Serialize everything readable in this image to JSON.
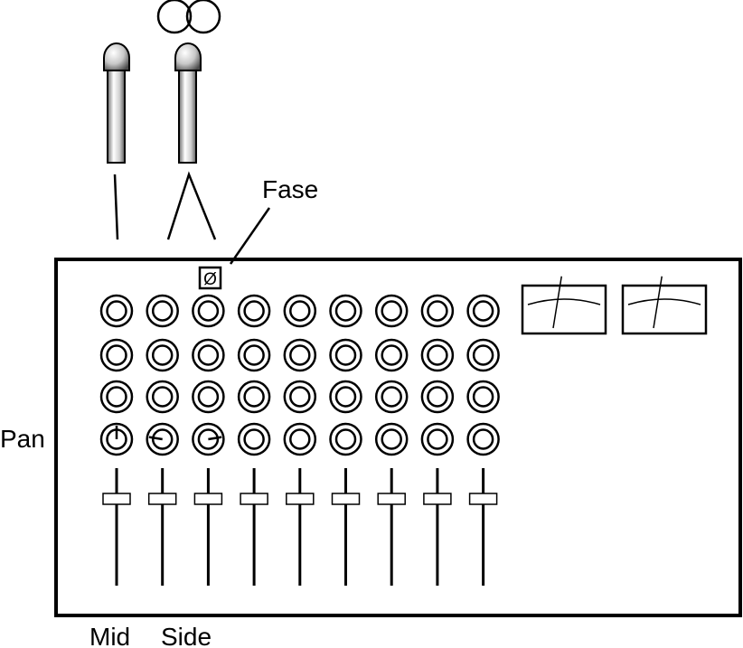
{
  "labels": {
    "phase_label": "Fase",
    "phase_symbol": "Ø",
    "pan_label": "Pan",
    "mid_label": "Mid",
    "side_label": "Side"
  },
  "mixer": {
    "channels": 9,
    "knob_rows": 4,
    "pan_positions": [
      0,
      -0.6,
      0.6
    ],
    "meters": 2,
    "meter_needle_positions": [
      0.6,
      0.6
    ]
  },
  "microphones": {
    "count": 2,
    "figure8_rings": 2
  },
  "colors": {
    "stroke": "#000000",
    "background": "#ffffff"
  }
}
